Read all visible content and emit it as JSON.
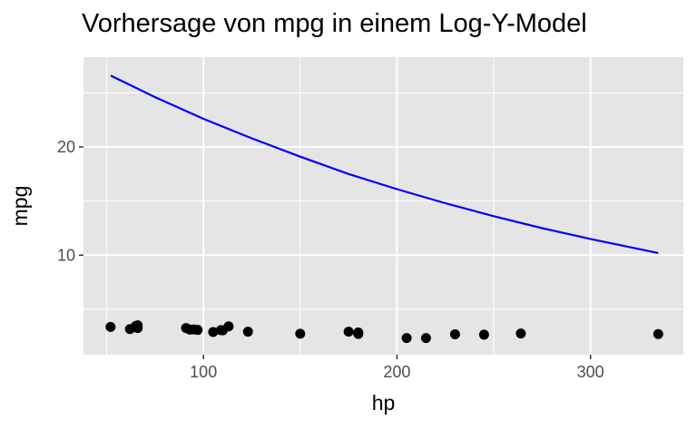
{
  "chart_data": {
    "type": "scatter",
    "title": "Vorhersage von mpg in einem Log-Y-Model",
    "xlabel": "hp",
    "ylabel": "mpg",
    "xlim": [
      38,
      348
    ],
    "ylim": [
      0.8,
      28.3
    ],
    "x_ticks": [
      100,
      200,
      300
    ],
    "y_ticks": [
      10,
      20
    ],
    "grid": true,
    "colors": {
      "panel": "#e5e5e5",
      "grid": "#ffffff",
      "points": "#000000",
      "line": "#0000ff"
    },
    "series": [
      {
        "type": "scatter",
        "points": [
          {
            "x": 52,
            "y": 3.37
          },
          {
            "x": 62,
            "y": 3.17
          },
          {
            "x": 65,
            "y": 3.45
          },
          {
            "x": 66,
            "y": 3.51
          },
          {
            "x": 66,
            "y": 3.26
          },
          {
            "x": 91,
            "y": 3.26
          },
          {
            "x": 93,
            "y": 3.12
          },
          {
            "x": 95,
            "y": 3.14
          },
          {
            "x": 97,
            "y": 3.09
          },
          {
            "x": 105,
            "y": 2.9
          },
          {
            "x": 109,
            "y": 3.07
          },
          {
            "x": 110,
            "y": 3.05
          },
          {
            "x": 113,
            "y": 3.42
          },
          {
            "x": 123,
            "y": 2.93
          },
          {
            "x": 150,
            "y": 2.74
          },
          {
            "x": 175,
            "y": 2.93
          },
          {
            "x": 180,
            "y": 2.85
          },
          {
            "x": 180,
            "y": 2.72
          },
          {
            "x": 205,
            "y": 2.34
          },
          {
            "x": 215,
            "y": 2.34
          },
          {
            "x": 230,
            "y": 2.69
          },
          {
            "x": 245,
            "y": 2.65
          },
          {
            "x": 264,
            "y": 2.76
          },
          {
            "x": 335,
            "y": 2.71
          }
        ]
      },
      {
        "type": "line",
        "points": [
          {
            "x": 52,
            "y": 26.6
          },
          {
            "x": 75,
            "y": 24.6
          },
          {
            "x": 100,
            "y": 22.6
          },
          {
            "x": 125,
            "y": 20.8
          },
          {
            "x": 150,
            "y": 19.1
          },
          {
            "x": 175,
            "y": 17.5
          },
          {
            "x": 200,
            "y": 16.1
          },
          {
            "x": 225,
            "y": 14.8
          },
          {
            "x": 250,
            "y": 13.6
          },
          {
            "x": 275,
            "y": 12.5
          },
          {
            "x": 300,
            "y": 11.5
          },
          {
            "x": 335,
            "y": 10.2
          }
        ]
      }
    ]
  }
}
